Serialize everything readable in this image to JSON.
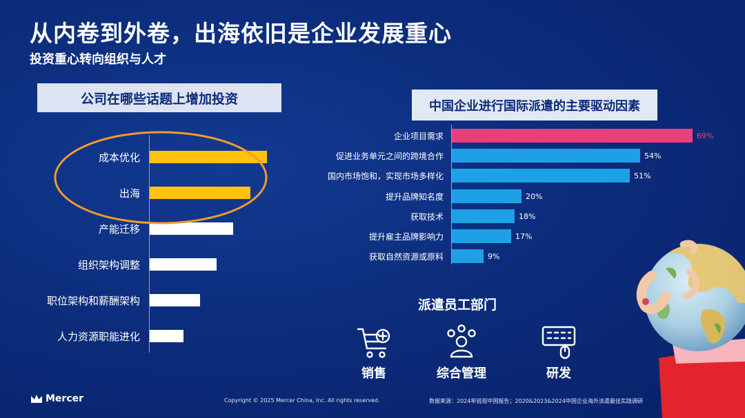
{
  "slide": {
    "title": "从内卷到外卷，出海依旧是企业发展重心",
    "subtitle": "投资重心转向组织与人才"
  },
  "left_chart": {
    "header": "公司在哪些话题上增加投资",
    "items": [
      {
        "label": "成本优化",
        "value": 100,
        "highlight": true
      },
      {
        "label": "出海",
        "value": 86,
        "highlight": true
      },
      {
        "label": "产能迁移",
        "value": 71,
        "highlight": false
      },
      {
        "label": "组织架构调整",
        "value": 57,
        "highlight": false
      },
      {
        "label": "职位架构和薪酬架构",
        "value": 43,
        "highlight": false
      },
      {
        "label": "人力资源职能进化",
        "value": 29,
        "highlight": false
      }
    ],
    "highlight_color": "#ffc20e",
    "normal_color": "#ffffff",
    "ring_color": "#f39b2c"
  },
  "chart_data": {
    "type": "bar",
    "orientation": "horizontal",
    "title": "中国企业进行国际派遣的主要驱动因素",
    "categories": [
      "企业项目需求",
      "促进业务单元之间的跨境合作",
      "国内市场饱和，实现市场多样化",
      "提升品牌知名度",
      "获取技术",
      "提升雇主品牌影响力",
      "获取自然资源或原料"
    ],
    "values": [
      69,
      54,
      51,
      20,
      18,
      17,
      9
    ],
    "labels": [
      "69%",
      "54%",
      "51%",
      "20%",
      "18%",
      "17%",
      "9%"
    ],
    "unit": "%",
    "xlim": [
      0,
      69
    ],
    "highlight_color": "#e8407a",
    "bar_color": "#1ea0e6"
  },
  "departments": {
    "title": "派遣员工部门",
    "items": [
      {
        "label": "销售",
        "icon": "shopping-cart-icon"
      },
      {
        "label": "综合管理",
        "icon": "people-network-icon"
      },
      {
        "label": "研发",
        "icon": "keyboard-mouse-icon"
      }
    ]
  },
  "footer": {
    "logo": "Mercer",
    "copyright": "Copyright © 2025 Mercer China, Inc. All rights reserved.",
    "source": "数据来源：2024年锐视中国报告；2020&2023&2024中国企业海外派遣最佳实践调研"
  }
}
